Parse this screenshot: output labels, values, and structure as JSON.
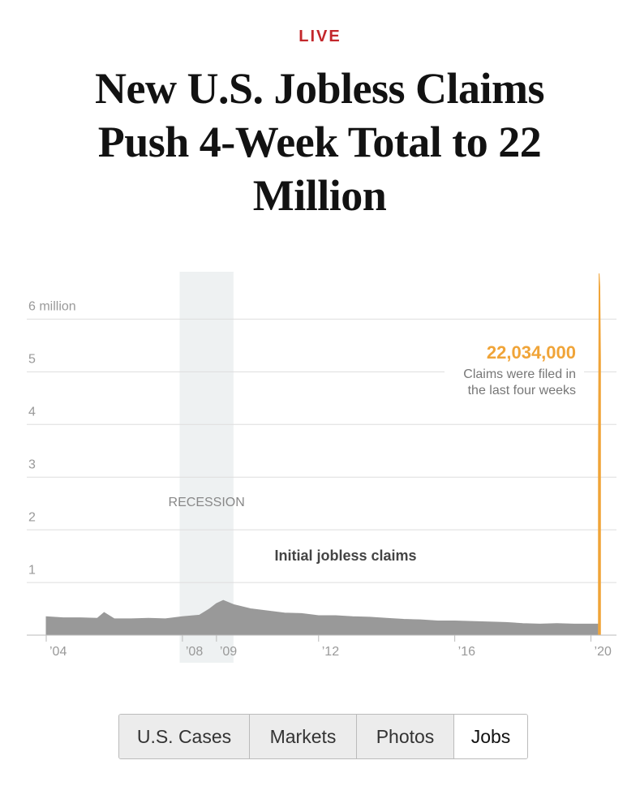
{
  "header": {
    "kicker": "LIVE",
    "title": "New U.S. Jobless Claims Push 4-Week Total to 22 Million"
  },
  "chart_data": {
    "type": "area",
    "xlim": [
      2004,
      2020.75
    ],
    "xticks": [
      {
        "value": 2004,
        "label": "’04"
      },
      {
        "value": 2008,
        "label": "’08"
      },
      {
        "value": 2009,
        "label": "’09"
      },
      {
        "value": 2012,
        "label": "’12"
      },
      {
        "value": 2016,
        "label": "’16"
      },
      {
        "value": 2020,
        "label": "’20"
      }
    ],
    "ylim": [
      0,
      6.9
    ],
    "yticks": [
      1,
      2,
      3,
      4,
      5,
      {
        "value": 6,
        "label": "6 million"
      }
    ],
    "grid": true,
    "shaded_regions": [
      {
        "label": "RECESSION",
        "x": [
          2007.92,
          2009.5
        ],
        "color": "#eef1f2"
      }
    ],
    "series": [
      {
        "name": "Initial jobless claims",
        "color": "#999999",
        "x": [
          2004,
          2004.5,
          2005,
          2005.5,
          2005.7,
          2006,
          2006.5,
          2007,
          2007.5,
          2008,
          2008.5,
          2008.8,
          2009,
          2009.2,
          2009.5,
          2010,
          2010.5,
          2011,
          2011.5,
          2012,
          2012.5,
          2013,
          2013.5,
          2014,
          2014.5,
          2015,
          2015.5,
          2016,
          2016.5,
          2017,
          2017.5,
          2018,
          2018.5,
          2019,
          2019.5,
          2020,
          2020.2
        ],
        "values": [
          0.35,
          0.33,
          0.33,
          0.32,
          0.43,
          0.31,
          0.31,
          0.32,
          0.31,
          0.35,
          0.38,
          0.5,
          0.6,
          0.66,
          0.58,
          0.5,
          0.46,
          0.42,
          0.41,
          0.37,
          0.37,
          0.35,
          0.34,
          0.32,
          0.3,
          0.29,
          0.27,
          0.27,
          0.26,
          0.25,
          0.24,
          0.22,
          0.21,
          0.22,
          0.21,
          0.21,
          0.21
        ]
      },
      {
        "color": "#f0a438",
        "x": [
          2020.22,
          2020.24,
          2020.26,
          2020.28
        ],
        "values": [
          3.307,
          6.867,
          6.615,
          5.245
        ]
      }
    ],
    "annotation": {
      "title": "22,034,000",
      "lines": [
        "Claims were filed in",
        "the last four weeks"
      ],
      "color": "#f0a438"
    }
  },
  "tabs": {
    "items": [
      "U.S. Cases",
      "Markets",
      "Photos",
      "Jobs"
    ],
    "selected": 3
  }
}
